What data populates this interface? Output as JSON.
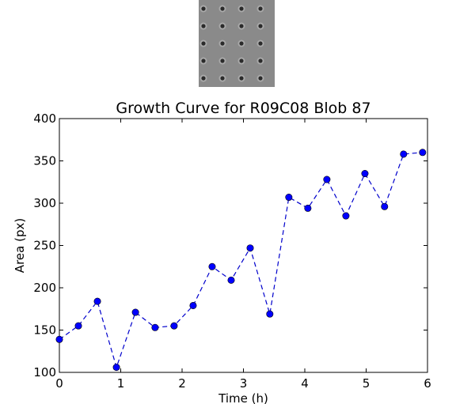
{
  "colors": {
    "series": "#0000cc",
    "marker": "#0000ff",
    "axes": "#000000",
    "thumbnail_bg": "#8a8a8a",
    "thumbnail_dot": "#2a2a2a"
  },
  "thumbnail": {
    "description": "grayscale image of 5 rows x 4 columns of dark spots",
    "rows": 5,
    "cols": 4
  },
  "chart_data": {
    "type": "line",
    "title": "Growth Curve for R09C08 Blob 87",
    "xlabel": "Time (h)",
    "ylabel": "Area (px)",
    "xlim": [
      0,
      6
    ],
    "ylim": [
      100,
      400
    ],
    "xticks": [
      0,
      1,
      2,
      3,
      4,
      5,
      6
    ],
    "yticks": [
      100,
      150,
      200,
      250,
      300,
      350,
      400
    ],
    "grid": false,
    "line_style": "dashed",
    "marker": "circle",
    "series": [
      {
        "x": [
          0.0,
          0.31,
          0.62,
          0.93,
          1.24,
          1.56,
          1.87,
          2.18,
          2.49,
          2.8,
          3.11,
          3.43,
          3.74,
          4.05,
          4.36,
          4.67,
          4.98,
          5.3,
          5.61,
          5.92
        ],
        "y": [
          139,
          155,
          184,
          106,
          171,
          153,
          155,
          179,
          225,
          209,
          247,
          169,
          307,
          294,
          328,
          285,
          335,
          296,
          358,
          360
        ]
      }
    ]
  }
}
